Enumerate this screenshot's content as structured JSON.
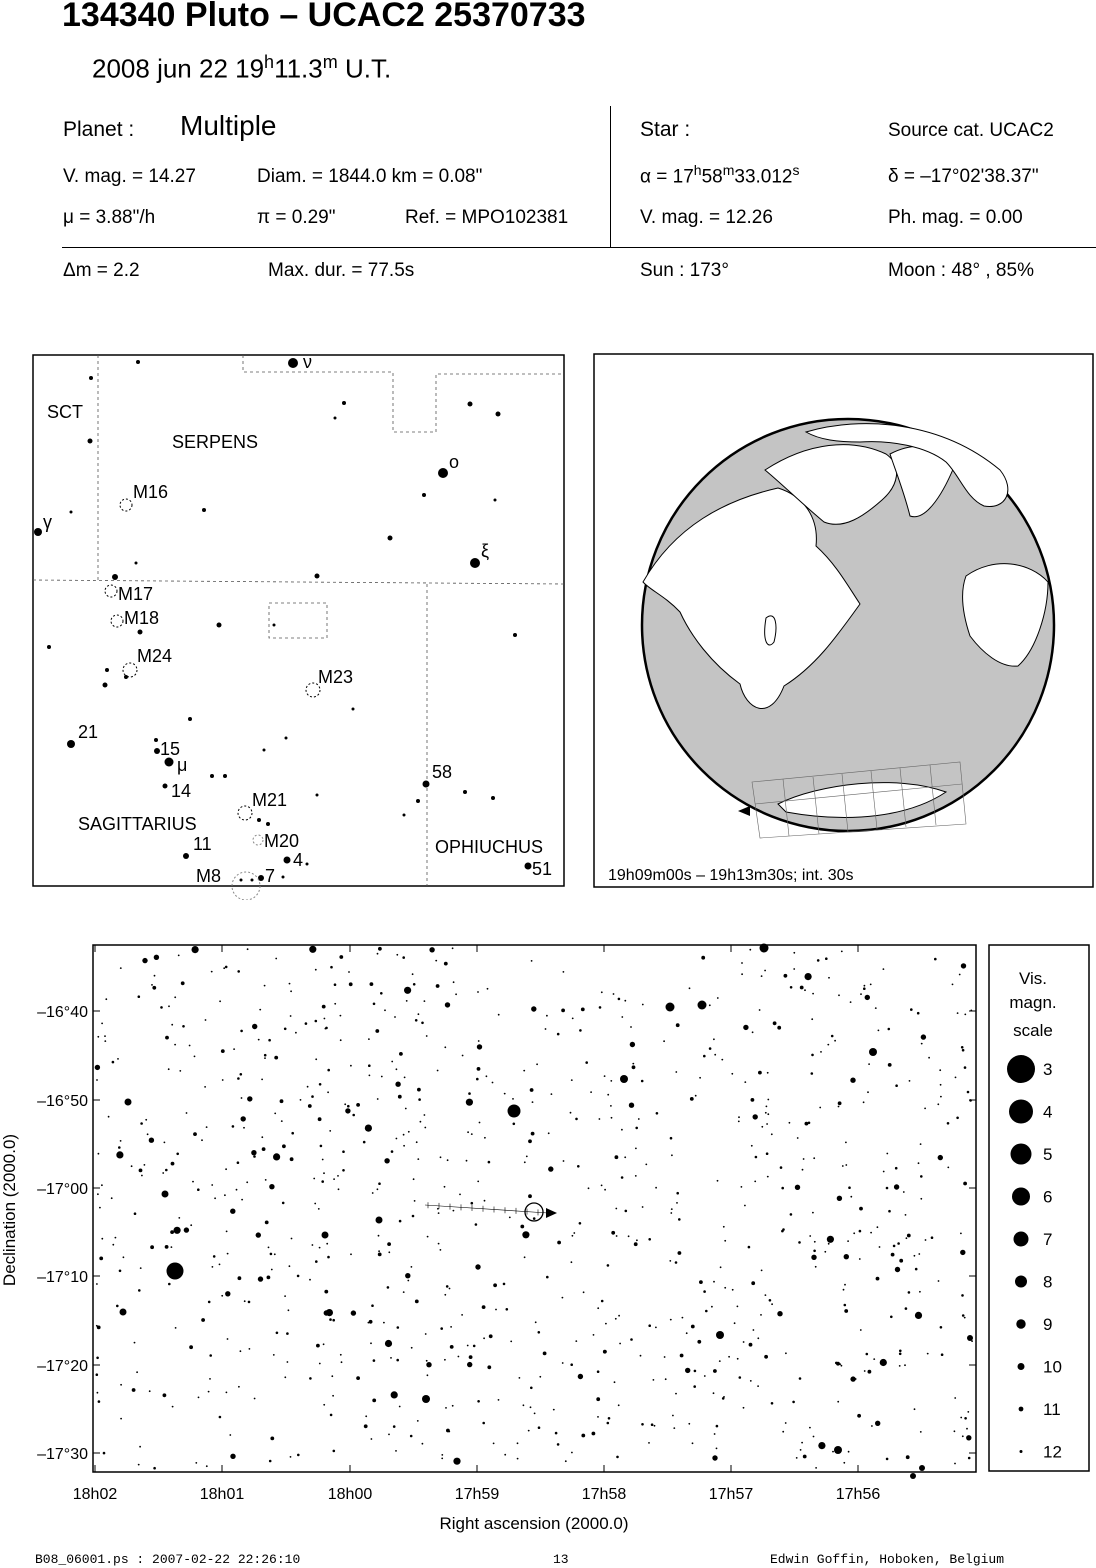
{
  "header": {
    "title": "134340 Pluto  –  UCAC2 25370733",
    "date": "2008 jun 22  19",
    "hour_unit": "h",
    "minute_value": "11.3",
    "minute_unit": "m",
    "time_system": " U.T."
  },
  "planet": {
    "label": "Planet :",
    "name": "Multiple",
    "vmag": "V. mag. = 14.27",
    "diam": "Diam. = 1844.0 km = 0.08\"",
    "motion": "μ =  3.88\"/h",
    "parallax": "π =  0.29\"",
    "ref": "Ref. = MPO102381",
    "delta_m": "Δm = 2.2",
    "max_dur": "Max. dur. = 77.5s"
  },
  "star": {
    "label": "Star :",
    "source": "Source cat.  UCAC2",
    "ra_prefix": "α = 17",
    "ra_h": "h",
    "ra_min": "58",
    "ra_m": "m",
    "ra_sec": "33.012",
    "ra_s": "s",
    "dec": "δ = –17°02'38.37\"",
    "vmag": "V. mag. = 12.26",
    "phmag": "Ph. mag. =  0.00",
    "sun": "Sun : 173°",
    "moon": "Moon :  48° , 85%"
  },
  "finder_map": {
    "constellations": [
      "SCT",
      "SERPENS",
      "SAGITTARIUS",
      "OPHIUCHUS"
    ],
    "objects": [
      "M16",
      "M17",
      "M18",
      "M24",
      "M23",
      "M21",
      "M20",
      "M8"
    ],
    "star_labels": [
      "ν",
      "o",
      "ξ",
      "γ",
      "21",
      "15",
      "μ",
      "14",
      "58",
      "11",
      "4",
      "7",
      "51"
    ]
  },
  "globe": {
    "caption": "19h09m00s – 19h13m30s; int. 30s"
  },
  "chart": {
    "ra_ticks": [
      "18h02",
      "18h01",
      "18h00",
      "17h59",
      "17h58",
      "17h57",
      "17h56"
    ],
    "dec_ticks": [
      "–16°40",
      "–16°50",
      "–17°00",
      "–17°10",
      "–17°20",
      "–17°30"
    ],
    "xlabel": "Right ascension (2000.0)",
    "ylabel": "Declination (2000.0)"
  },
  "legend": {
    "title_lines": [
      "Vis.",
      "magn.",
      "scale"
    ],
    "mags": [
      "3",
      "4",
      "5",
      "6",
      "7",
      "8",
      "9",
      "10",
      "11",
      "12"
    ]
  },
  "footer": {
    "file": "B08_06001.ps : 2007-02-22 22:26:10",
    "page": "13",
    "author": "Edwin Goffin, Hoboken, Belgium"
  }
}
